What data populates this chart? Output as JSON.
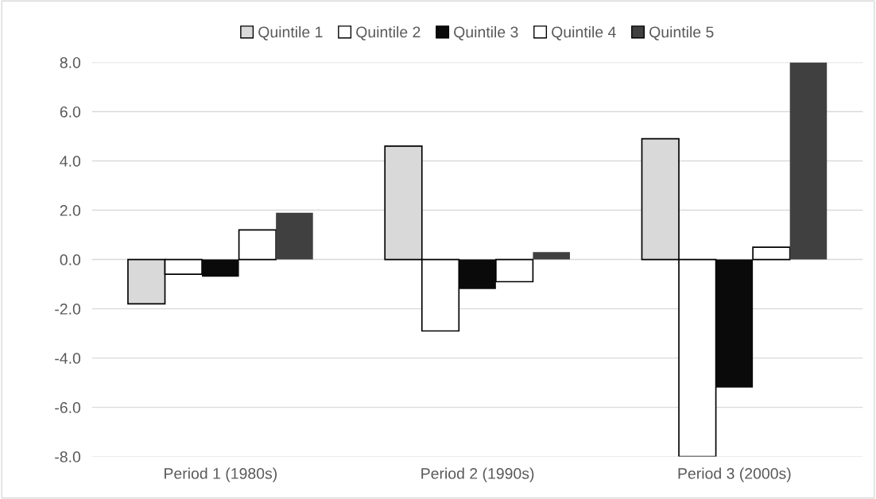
{
  "chart_data": {
    "type": "bar",
    "categories": [
      "Period 1 (1980s)",
      "Period 2 (1990s)",
      "Period 3 (2000s)"
    ],
    "series": [
      {
        "name": "Quintile 1",
        "color": "#d9d9d9",
        "values": [
          -1.8,
          4.6,
          4.9
        ]
      },
      {
        "name": "Quintile 2",
        "color": "#ffffff",
        "values": [
          -0.6,
          -2.9,
          -8.0
        ]
      },
      {
        "name": "Quintile 3",
        "color": "#0a0a0a",
        "values": [
          -0.7,
          -1.2,
          -5.2
        ]
      },
      {
        "name": "Quintile 4",
        "color": "#ffffff",
        "values": [
          1.2,
          -0.9,
          0.5
        ]
      },
      {
        "name": "Quintile 5",
        "color": "#404040",
        "values": [
          1.9,
          0.3,
          8.0
        ]
      }
    ],
    "ylim": [
      -8.0,
      8.0
    ],
    "yticks": [
      {
        "value": -8,
        "label": "-8.0"
      },
      {
        "value": -6,
        "label": "-6.0"
      },
      {
        "value": -4,
        "label": "-4.0"
      },
      {
        "value": -2,
        "label": "-2.0"
      },
      {
        "value": 0,
        "label": "0.0"
      },
      {
        "value": 2,
        "label": "2.0"
      },
      {
        "value": 4,
        "label": "4.0"
      },
      {
        "value": 6,
        "label": "6.0"
      },
      {
        "value": 8,
        "label": "8.0"
      }
    ],
    "grid": "y",
    "legend": "top"
  }
}
